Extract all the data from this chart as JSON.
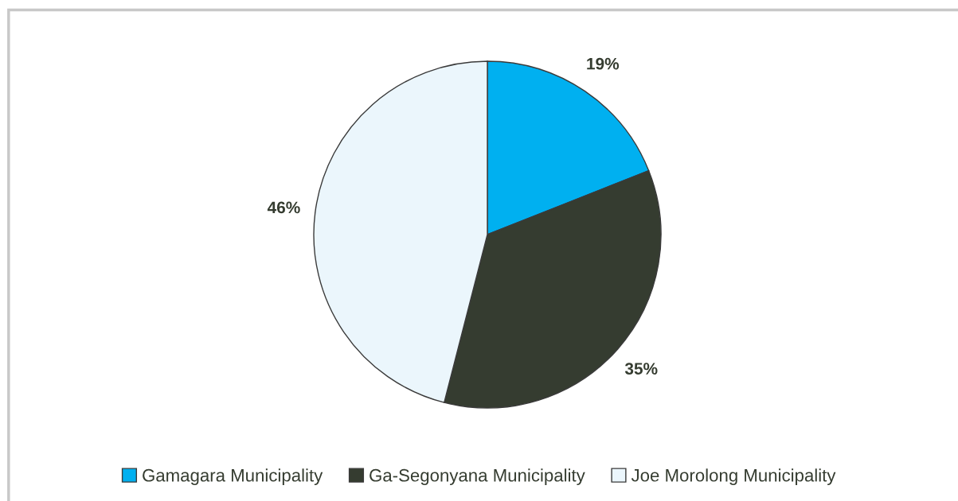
{
  "chart_data": {
    "type": "pie",
    "categories": [
      "Gamagara Municipality",
      "Ga-Segonyana Municipality",
      "Joe Morolong Municipality"
    ],
    "values": [
      19,
      35,
      46
    ],
    "colors": [
      "#00b0f0",
      "#353c30",
      "#ebf6fc"
    ],
    "value_labels": [
      "19%",
      "35%",
      "46%"
    ],
    "legend": "bottom"
  }
}
